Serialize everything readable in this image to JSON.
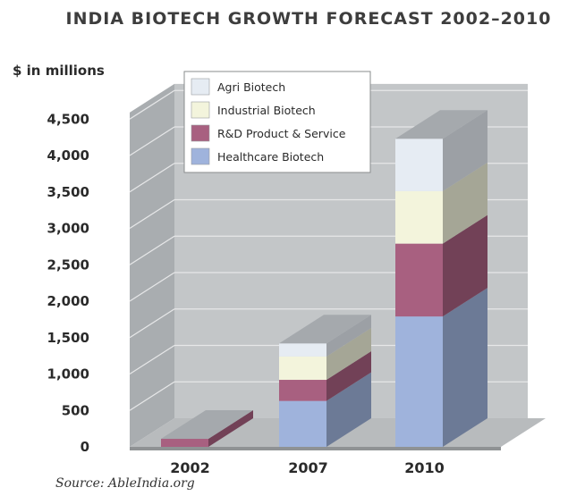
{
  "chart_data": {
    "type": "bar",
    "stacked": true,
    "style": "3d",
    "title": "INDIA BIOTECH GROWTH FORECAST 2002–2010",
    "ylabel": "$ in millions",
    "source": "Source: AbleIndia.org",
    "categories": [
      "2002",
      "2007",
      "2010"
    ],
    "ylim": [
      0,
      4500
    ],
    "yticks": [
      "0",
      "500",
      "1,000",
      "1,500",
      "2,000",
      "2,500",
      "3,000",
      "3,500",
      "4,000",
      "4,500"
    ],
    "ytick_values": [
      0,
      500,
      1000,
      1500,
      2000,
      2500,
      3000,
      3500,
      4000,
      4500
    ],
    "legend_position": "top-left",
    "series": [
      {
        "name": "Healthcare Biotech",
        "values": [
          0,
          630,
          1790
        ],
        "color": "#9fb3dc"
      },
      {
        "name": "R&D Product & Service",
        "values": [
          110,
          290,
          1000
        ],
        "color": "#a86080"
      },
      {
        "name": "Industrial Biotech",
        "values": [
          0,
          320,
          720
        ],
        "color": "#f3f4dc"
      },
      {
        "name": "Agri Biotech",
        "values": [
          0,
          180,
          720
        ],
        "color": "#e6ecf3"
      }
    ],
    "legend_order": [
      "Agri Biotech",
      "Industrial Biotech",
      "R&D Product & Service",
      "Healthcare Biotech"
    ]
  }
}
